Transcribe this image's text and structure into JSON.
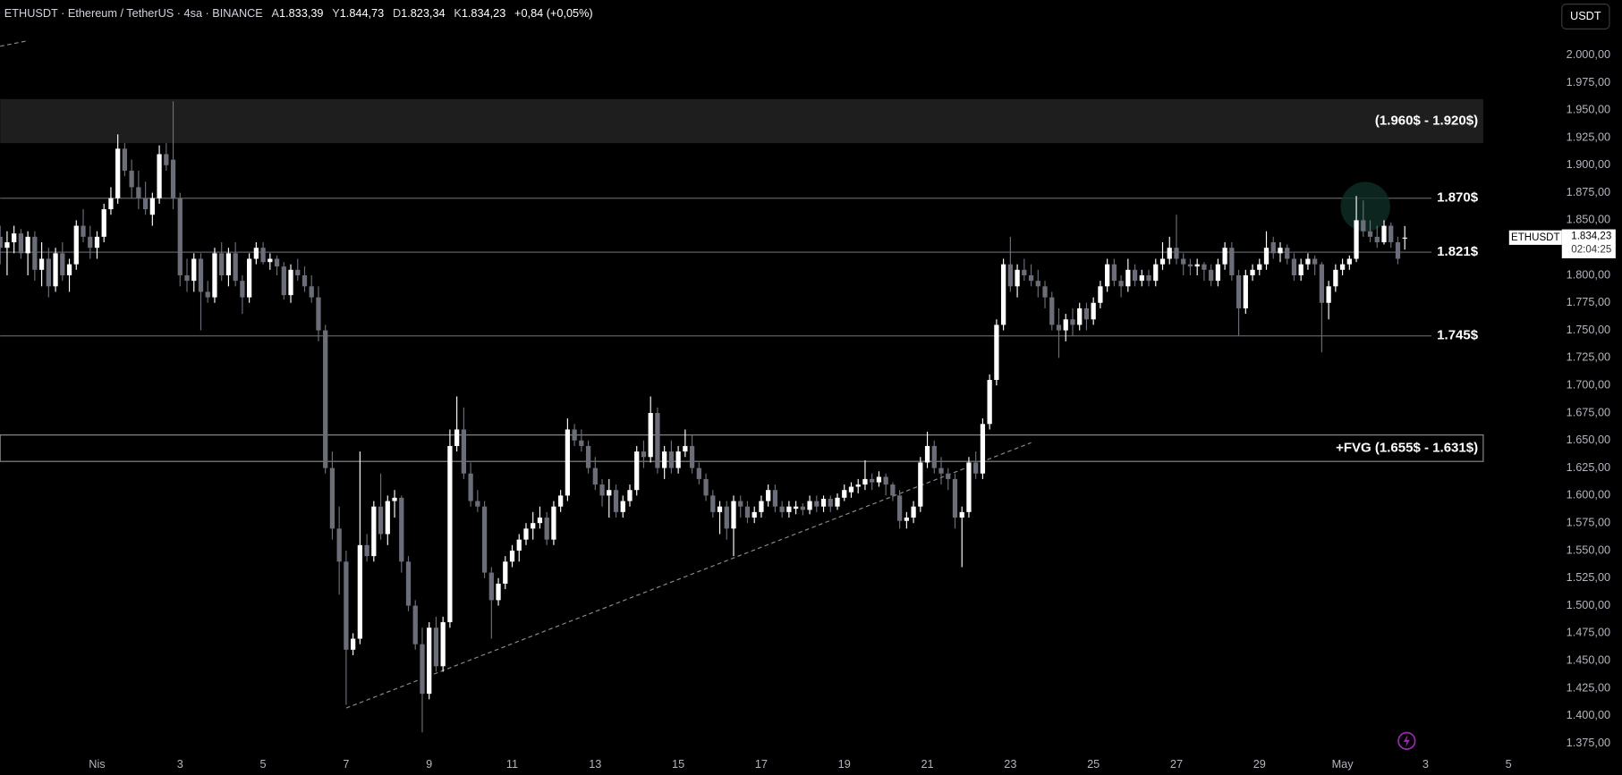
{
  "header": {
    "symbol": "ETHUSDT · Ethereum / TetherUS · 4sa · BINANCE",
    "open_label": "A",
    "open": "1.833,39",
    "high_label": "Y",
    "high": "1.844,73",
    "low_label": "D",
    "low": "1.823,34",
    "close_label": "K",
    "close": "1.834,23",
    "change": "+0,84 (+0,05%)"
  },
  "ui": {
    "currency_button": "USDT"
  },
  "chart_data": {
    "type": "candlestick",
    "up_color": "#ffffff",
    "down_color": "#6b6e78",
    "background": "#000000",
    "grid": false,
    "xlim": [
      0,
      225.7
    ],
    "ylim": [
      1365,
      2050
    ],
    "xticks": [
      {
        "value": 14,
        "label": "Nis"
      },
      {
        "value": 26,
        "label": "3"
      },
      {
        "value": 38,
        "label": "5"
      },
      {
        "value": 50,
        "label": "7"
      },
      {
        "value": 62,
        "label": "9"
      },
      {
        "value": 74,
        "label": "11"
      },
      {
        "value": 86,
        "label": "13"
      },
      {
        "value": 98,
        "label": "15"
      },
      {
        "value": 110,
        "label": "17"
      },
      {
        "value": 122,
        "label": "19"
      },
      {
        "value": 134,
        "label": "21"
      },
      {
        "value": 146,
        "label": "23"
      },
      {
        "value": 158,
        "label": "25"
      },
      {
        "value": 170,
        "label": "27"
      },
      {
        "value": 182,
        "label": "29"
      },
      {
        "value": 194,
        "label": "May"
      },
      {
        "value": 206,
        "label": "3"
      },
      {
        "value": 218,
        "label": "5"
      }
    ],
    "yticks": [
      {
        "value": 1375,
        "label": "1.375,00"
      },
      {
        "value": 1400,
        "label": "1.400,00"
      },
      {
        "value": 1425,
        "label": "1.425,00"
      },
      {
        "value": 1450,
        "label": "1.450,00"
      },
      {
        "value": 1475,
        "label": "1.475,00"
      },
      {
        "value": 1500,
        "label": "1.500,00"
      },
      {
        "value": 1525,
        "label": "1.525,00"
      },
      {
        "value": 1550,
        "label": "1.550,00"
      },
      {
        "value": 1575,
        "label": "1.575,00"
      },
      {
        "value": 1600,
        "label": "1.600,00"
      },
      {
        "value": 1625,
        "label": "1.625,00"
      },
      {
        "value": 1650,
        "label": "1.650,00"
      },
      {
        "value": 1675,
        "label": "1.675,00"
      },
      {
        "value": 1700,
        "label": "1.700,00"
      },
      {
        "value": 1725,
        "label": "1.725,00"
      },
      {
        "value": 1750,
        "label": "1.750,00"
      },
      {
        "value": 1775,
        "label": "1.775,00"
      },
      {
        "value": 1800,
        "label": "1.800,00"
      },
      {
        "value": 1825,
        "label": "1.825,00"
      },
      {
        "value": 1850,
        "label": "1.850,00"
      },
      {
        "value": 1875,
        "label": "1.875,00"
      },
      {
        "value": 1900,
        "label": "1.900,00"
      },
      {
        "value": 1925,
        "label": "1.925,00"
      },
      {
        "value": 1950,
        "label": "1.950,00"
      },
      {
        "value": 1975,
        "label": "1.975,00"
      },
      {
        "value": 2000,
        "label": "2.000,00"
      }
    ],
    "zones": [
      {
        "top": 1960,
        "bottom": 1920,
        "label": "(1.960$ - 1.920$)",
        "fill": "#1e1e1e"
      },
      {
        "top": 1655,
        "bottom": 1631,
        "label": "+FVG (1.655$ - 1.631$)",
        "border": "#8c8c8c"
      }
    ],
    "levels": [
      {
        "value": 1870,
        "label": "1.870$",
        "color": "#5d5f66"
      },
      {
        "value": 1821,
        "label": "1.821$",
        "color": "#5d5f66"
      },
      {
        "value": 1745,
        "label": "1.745$",
        "color": "#5d5f66"
      }
    ],
    "trendlines": [
      {
        "x": [
          50,
          149
        ],
        "y": [
          1407,
          1648
        ],
        "color": "#8c8c8c"
      },
      {
        "x": [
          0,
          4
        ],
        "y": [
          2008,
          2013
        ],
        "color": "#8c8c8c"
      }
    ],
    "last_price": {
      "value": 1834.23,
      "label": "1.834,23",
      "symbol": "ETHUSDT",
      "countdown": "02:04:25"
    },
    "candles": [
      [
        1835,
        1845,
        1810,
        1825
      ],
      [
        1825,
        1840,
        1800,
        1830
      ],
      [
        1830,
        1845,
        1820,
        1838
      ],
      [
        1838,
        1842,
        1815,
        1820
      ],
      [
        1820,
        1840,
        1800,
        1835
      ],
      [
        1835,
        1840,
        1795,
        1805
      ],
      [
        1805,
        1830,
        1790,
        1815
      ],
      [
        1815,
        1825,
        1780,
        1790
      ],
      [
        1790,
        1825,
        1785,
        1820
      ],
      [
        1820,
        1830,
        1795,
        1800
      ],
      [
        1800,
        1815,
        1785,
        1810
      ],
      [
        1810,
        1850,
        1805,
        1845
      ],
      [
        1845,
        1860,
        1830,
        1835
      ],
      [
        1835,
        1845,
        1815,
        1825
      ],
      [
        1825,
        1840,
        1815,
        1835
      ],
      [
        1835,
        1865,
        1830,
        1860
      ],
      [
        1860,
        1880,
        1855,
        1870
      ],
      [
        1870,
        1928,
        1865,
        1915
      ],
      [
        1915,
        1920,
        1890,
        1895
      ],
      [
        1895,
        1905,
        1870,
        1880
      ],
      [
        1880,
        1895,
        1860,
        1870
      ],
      [
        1870,
        1885,
        1855,
        1860
      ],
      [
        1855,
        1875,
        1845,
        1870
      ],
      [
        1870,
        1918,
        1865,
        1910
      ],
      [
        1910,
        1920,
        1895,
        1900
      ],
      [
        1905,
        1958,
        1860,
        1870
      ],
      [
        1870,
        1875,
        1790,
        1800
      ],
      [
        1800,
        1815,
        1785,
        1795
      ],
      [
        1795,
        1820,
        1785,
        1815
      ],
      [
        1815,
        1820,
        1750,
        1785
      ],
      [
        1785,
        1795,
        1775,
        1780
      ],
      [
        1780,
        1825,
        1775,
        1820
      ],
      [
        1820,
        1830,
        1795,
        1800
      ],
      [
        1800,
        1825,
        1790,
        1820
      ],
      [
        1820,
        1830,
        1790,
        1795
      ],
      [
        1795,
        1800,
        1765,
        1780
      ],
      [
        1780,
        1820,
        1775,
        1815
      ],
      [
        1815,
        1830,
        1810,
        1825
      ],
      [
        1825,
        1830,
        1810,
        1812
      ],
      [
        1812,
        1820,
        1805,
        1815
      ],
      [
        1815,
        1818,
        1800,
        1808
      ],
      [
        1808,
        1812,
        1778,
        1782
      ],
      [
        1782,
        1810,
        1775,
        1805
      ],
      [
        1805,
        1815,
        1795,
        1800
      ],
      [
        1800,
        1808,
        1785,
        1790
      ],
      [
        1790,
        1800,
        1775,
        1780
      ],
      [
        1780,
        1790,
        1740,
        1750
      ],
      [
        1750,
        1755,
        1620,
        1625
      ],
      [
        1625,
        1640,
        1560,
        1570
      ],
      [
        1570,
        1590,
        1510,
        1540
      ],
      [
        1540,
        1550,
        1410,
        1460
      ],
      [
        1460,
        1475,
        1455,
        1470
      ],
      [
        1470,
        1640,
        1465,
        1555
      ],
      [
        1555,
        1565,
        1540,
        1545
      ],
      [
        1545,
        1595,
        1540,
        1590
      ],
      [
        1590,
        1620,
        1560,
        1565
      ],
      [
        1565,
        1600,
        1555,
        1595
      ],
      [
        1595,
        1605,
        1580,
        1598
      ],
      [
        1598,
        1600,
        1530,
        1540
      ],
      [
        1540,
        1545,
        1495,
        1500
      ],
      [
        1500,
        1505,
        1460,
        1465
      ],
      [
        1465,
        1480,
        1385,
        1420
      ],
      [
        1420,
        1485,
        1415,
        1480
      ],
      [
        1480,
        1490,
        1440,
        1445
      ],
      [
        1445,
        1490,
        1440,
        1485
      ],
      [
        1485,
        1660,
        1480,
        1645
      ],
      [
        1645,
        1690,
        1640,
        1660
      ],
      [
        1660,
        1680,
        1615,
        1620
      ],
      [
        1620,
        1630,
        1590,
        1595
      ],
      [
        1595,
        1605,
        1585,
        1590
      ],
      [
        1590,
        1595,
        1525,
        1530
      ],
      [
        1530,
        1535,
        1470,
        1505
      ],
      [
        1505,
        1525,
        1500,
        1520
      ],
      [
        1520,
        1545,
        1515,
        1540
      ],
      [
        1540,
        1555,
        1535,
        1550
      ],
      [
        1550,
        1565,
        1540,
        1560
      ],
      [
        1560,
        1575,
        1555,
        1570
      ],
      [
        1570,
        1585,
        1560,
        1575
      ],
      [
        1575,
        1590,
        1570,
        1580
      ],
      [
        1580,
        1585,
        1555,
        1560
      ],
      [
        1560,
        1595,
        1555,
        1590
      ],
      [
        1590,
        1605,
        1585,
        1600
      ],
      [
        1600,
        1670,
        1595,
        1660
      ],
      [
        1660,
        1665,
        1645,
        1650
      ],
      [
        1650,
        1660,
        1640,
        1645
      ],
      [
        1645,
        1650,
        1620,
        1625
      ],
      [
        1625,
        1635,
        1605,
        1610
      ],
      [
        1610,
        1615,
        1590,
        1600
      ],
      [
        1600,
        1615,
        1580,
        1605
      ],
      [
        1605,
        1610,
        1580,
        1585
      ],
      [
        1585,
        1600,
        1580,
        1595
      ],
      [
        1595,
        1610,
        1590,
        1605
      ],
      [
        1605,
        1645,
        1600,
        1640
      ],
      [
        1640,
        1650,
        1625,
        1635
      ],
      [
        1635,
        1690,
        1630,
        1675
      ],
      [
        1675,
        1680,
        1620,
        1625
      ],
      [
        1625,
        1645,
        1615,
        1640
      ],
      [
        1640,
        1650,
        1620,
        1625
      ],
      [
        1625,
        1645,
        1620,
        1640
      ],
      [
        1640,
        1660,
        1635,
        1645
      ],
      [
        1645,
        1655,
        1620,
        1625
      ],
      [
        1625,
        1630,
        1610,
        1615
      ],
      [
        1615,
        1620,
        1595,
        1600
      ],
      [
        1600,
        1605,
        1580,
        1585
      ],
      [
        1585,
        1595,
        1565,
        1590
      ],
      [
        1590,
        1595,
        1560,
        1570
      ],
      [
        1570,
        1600,
        1545,
        1595
      ],
      [
        1595,
        1600,
        1580,
        1590
      ],
      [
        1590,
        1595,
        1575,
        1580
      ],
      [
        1580,
        1590,
        1575,
        1585
      ],
      [
        1585,
        1600,
        1580,
        1595
      ],
      [
        1595,
        1610,
        1590,
        1605
      ],
      [
        1605,
        1610,
        1585,
        1590
      ],
      [
        1590,
        1595,
        1580,
        1585
      ],
      [
        1585,
        1595,
        1580,
        1590
      ],
      [
        1588,
        1595,
        1583,
        1590
      ],
      [
        1590,
        1593,
        1582,
        1587
      ],
      [
        1587,
        1600,
        1583,
        1595
      ],
      [
        1595,
        1600,
        1585,
        1590
      ],
      [
        1590,
        1600,
        1585,
        1597
      ],
      [
        1597,
        1600,
        1585,
        1590
      ],
      [
        1590,
        1602,
        1587,
        1598
      ],
      [
        1598,
        1610,
        1595,
        1605
      ],
      [
        1603,
        1612,
        1598,
        1608
      ],
      [
        1608,
        1615,
        1602,
        1610
      ],
      [
        1610,
        1632,
        1605,
        1615
      ],
      [
        1615,
        1620,
        1605,
        1612
      ],
      [
        1612,
        1622,
        1608,
        1617
      ],
      [
        1617,
        1620,
        1600,
        1610
      ],
      [
        1610,
        1612,
        1595,
        1600
      ],
      [
        1600,
        1605,
        1570,
        1577
      ],
      [
        1577,
        1585,
        1570,
        1580
      ],
      [
        1580,
        1595,
        1575,
        1590
      ],
      [
        1590,
        1635,
        1585,
        1630
      ],
      [
        1630,
        1658,
        1625,
        1645
      ],
      [
        1645,
        1650,
        1620,
        1625
      ],
      [
        1625,
        1635,
        1610,
        1620
      ],
      [
        1620,
        1625,
        1605,
        1615
      ],
      [
        1615,
        1620,
        1570,
        1580
      ],
      [
        1580,
        1590,
        1535,
        1585
      ],
      [
        1585,
        1635,
        1580,
        1630
      ],
      [
        1630,
        1640,
        1615,
        1620
      ],
      [
        1620,
        1670,
        1615,
        1665
      ],
      [
        1665,
        1710,
        1660,
        1705
      ],
      [
        1705,
        1760,
        1700,
        1755
      ],
      [
        1755,
        1815,
        1750,
        1810
      ],
      [
        1810,
        1835,
        1785,
        1790
      ],
      [
        1790,
        1810,
        1780,
        1805
      ],
      [
        1805,
        1815,
        1795,
        1800
      ],
      [
        1800,
        1810,
        1790,
        1795
      ],
      [
        1795,
        1805,
        1780,
        1790
      ],
      [
        1790,
        1795,
        1770,
        1780
      ],
      [
        1780,
        1785,
        1750,
        1755
      ],
      [
        1755,
        1770,
        1725,
        1750
      ],
      [
        1750,
        1765,
        1740,
        1760
      ],
      [
        1760,
        1770,
        1745,
        1755
      ],
      [
        1755,
        1775,
        1750,
        1770
      ],
      [
        1770,
        1775,
        1750,
        1760
      ],
      [
        1760,
        1780,
        1755,
        1775
      ],
      [
        1775,
        1795,
        1770,
        1790
      ],
      [
        1790,
        1815,
        1785,
        1810
      ],
      [
        1810,
        1815,
        1790,
        1795
      ],
      [
        1795,
        1800,
        1780,
        1790
      ],
      [
        1790,
        1815,
        1785,
        1805
      ],
      [
        1805,
        1810,
        1790,
        1795
      ],
      [
        1795,
        1805,
        1790,
        1800
      ],
      [
        1800,
        1805,
        1790,
        1795
      ],
      [
        1795,
        1815,
        1790,
        1810
      ],
      [
        1810,
        1830,
        1805,
        1815
      ],
      [
        1815,
        1835,
        1810,
        1825
      ],
      [
        1825,
        1855,
        1810,
        1815
      ],
      [
        1815,
        1820,
        1800,
        1810
      ],
      [
        1810,
        1815,
        1800,
        1808
      ],
      [
        1808,
        1815,
        1800,
        1810
      ],
      [
        1810,
        1812,
        1795,
        1805
      ],
      [
        1805,
        1810,
        1790,
        1795
      ],
      [
        1795,
        1815,
        1790,
        1810
      ],
      [
        1810,
        1830,
        1805,
        1825
      ],
      [
        1825,
        1830,
        1795,
        1800
      ],
      [
        1800,
        1805,
        1745,
        1770
      ],
      [
        1770,
        1805,
        1765,
        1800
      ],
      [
        1800,
        1810,
        1795,
        1805
      ],
      [
        1805,
        1815,
        1800,
        1810
      ],
      [
        1810,
        1840,
        1805,
        1825
      ],
      [
        1830,
        1835,
        1815,
        1820
      ],
      [
        1820,
        1830,
        1812,
        1825
      ],
      [
        1825,
        1828,
        1810,
        1815
      ],
      [
        1815,
        1820,
        1795,
        1800
      ],
      [
        1800,
        1815,
        1795,
        1810
      ],
      [
        1810,
        1820,
        1805,
        1815
      ],
      [
        1815,
        1818,
        1800,
        1810
      ],
      [
        1810,
        1812,
        1730,
        1775
      ],
      [
        1775,
        1795,
        1760,
        1790
      ],
      [
        1790,
        1810,
        1785,
        1805
      ],
      [
        1805,
        1815,
        1800,
        1810
      ],
      [
        1810,
        1818,
        1805,
        1815
      ],
      [
        1815,
        1872,
        1812,
        1850
      ],
      [
        1850,
        1868,
        1835,
        1840
      ],
      [
        1840,
        1850,
        1830,
        1835
      ],
      [
        1835,
        1845,
        1825,
        1830
      ],
      [
        1830,
        1850,
        1828,
        1845
      ],
      [
        1845,
        1848,
        1825,
        1830
      ],
      [
        1830,
        1835,
        1810,
        1815
      ],
      [
        1833.39,
        1844.73,
        1823.34,
        1834.23
      ]
    ]
  }
}
